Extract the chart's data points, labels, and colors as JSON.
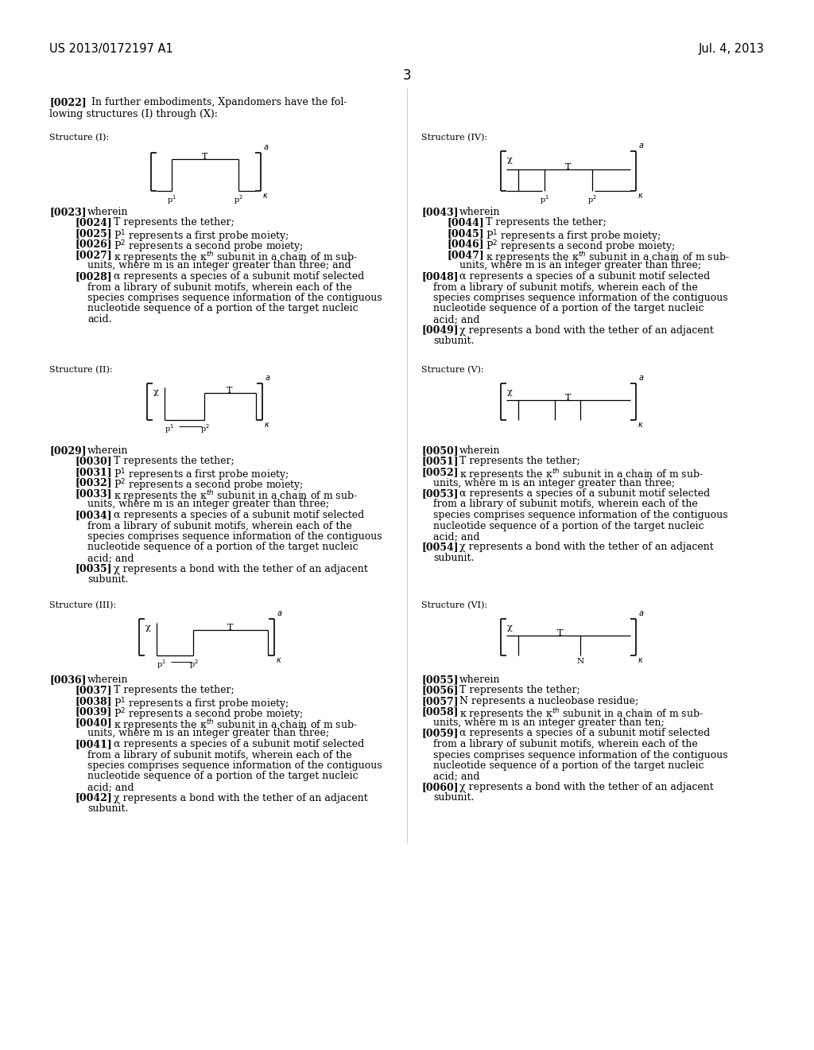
{
  "background_color": "#ffffff",
  "header_left": "US 2013/0172197 A1",
  "header_right": "Jul. 4, 2013",
  "page_number": "3"
}
